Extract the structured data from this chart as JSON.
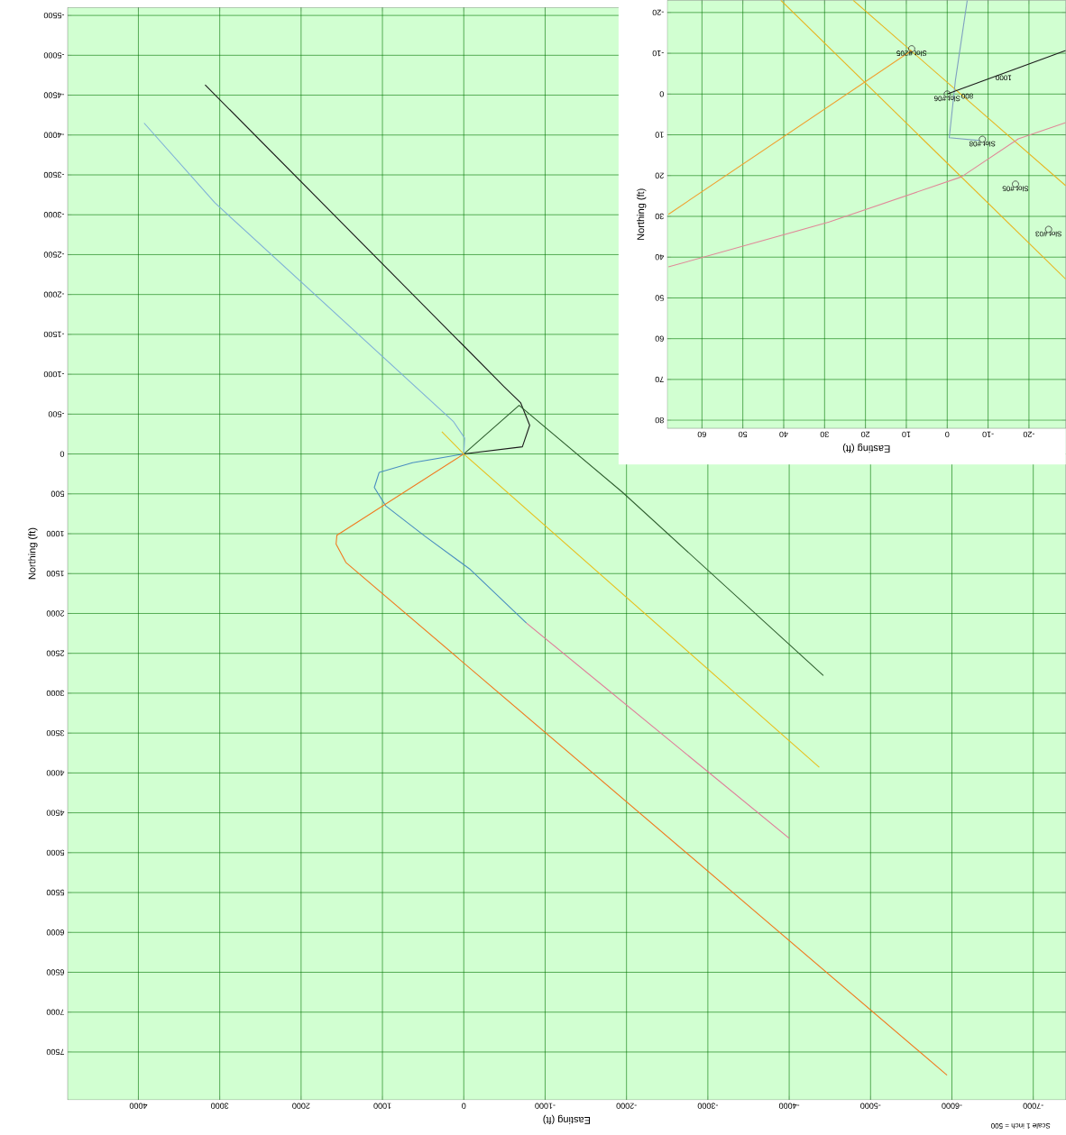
{
  "chart_data": [
    {
      "type": "line",
      "xlabel": "Easting (ft)",
      "ylabel": "Northing (ft)",
      "xlim": [
        4870,
        -7400
      ],
      "ylim": [
        8100,
        -5600
      ],
      "xticks": [
        4000,
        3000,
        2000,
        1000,
        0,
        -1000,
        -2000,
        -3000,
        -4000,
        -5000,
        -6000,
        -7000
      ],
      "yticks": [
        -5500,
        -5000,
        -4500,
        -4000,
        -3500,
        -3000,
        -2500,
        -2000,
        -1500,
        -1000,
        -500,
        0,
        500,
        1000,
        1500,
        2000,
        2500,
        3000,
        3500,
        4000,
        4500,
        5000,
        5500,
        6000,
        6500,
        7000,
        7500
      ],
      "grid": true,
      "series": [
        {
          "color": "#1a1a1a",
          "x": [
            0,
            -720,
            -810,
            -700,
            -500,
            3180
          ],
          "values": [
            0,
            -90,
            -360,
            -640,
            -840,
            -4630
          ]
        },
        {
          "color": "#2f5f2f",
          "x": [
            0,
            -680,
            -1950,
            -4420
          ],
          "values": [
            0,
            -610,
            480,
            2780
          ]
        },
        {
          "color": "#7fb0d8",
          "x": [
            0,
            -10,
            130,
            3060,
            3930
          ],
          "values": [
            0,
            -200,
            -410,
            -3150,
            -4150
          ]
        },
        {
          "color": "#4a8ec0",
          "x": [
            0,
            630,
            1040,
            1100,
            960,
            480,
            -70,
            -770
          ],
          "values": [
            0,
            110,
            230,
            420,
            650,
            1030,
            1440,
            2120
          ]
        },
        {
          "color": "#e07898",
          "x": [
            -770,
            -4000
          ],
          "values": [
            2120,
            4820
          ]
        },
        {
          "color": "#f07a20",
          "x": [
            0,
            1560,
            1570,
            1450,
            -5940
          ],
          "values": [
            0,
            1020,
            1130,
            1360,
            7790
          ]
        },
        {
          "color": "#e8c020",
          "x": [
            270,
            0,
            -4370
          ],
          "values": [
            -280,
            0,
            3930
          ]
        }
      ],
      "annotations": [
        "Scale 1 inch = 500"
      ]
    },
    {
      "type": "line",
      "xlabel": "Easting (ft)",
      "ylabel": "Northing (ft)",
      "xlim": [
        68.5,
        -29
      ],
      "ylim": [
        82,
        -23
      ],
      "xticks": [
        60,
        50,
        40,
        30,
        20,
        10,
        0,
        -10,
        -20
      ],
      "yticks": [
        -20,
        -10,
        0,
        10,
        20,
        30,
        40,
        50,
        60,
        70,
        80
      ],
      "grid": true,
      "series": [
        {
          "color": "#e8b420",
          "x": [
            40.7,
            -29
          ],
          "values": [
            -23,
            45.4
          ]
        },
        {
          "color": "#e8b420",
          "x": [
            23,
            -29
          ],
          "values": [
            -23,
            22.5
          ]
        },
        {
          "color": "#f0a030",
          "x": [
            8.7,
            68.2
          ],
          "values": [
            -10.7,
            29.5
          ]
        },
        {
          "color": "#e08898",
          "x": [
            -29,
            -17.4,
            -3.5,
            28.9,
            68.2
          ],
          "values": [
            7,
            11,
            20.3,
            31.4,
            42.4
          ]
        },
        {
          "color": "#7fa0c0",
          "x": [
            -4.9,
            -2,
            -0.5,
            -7.9
          ],
          "values": [
            -23,
            -3.3,
            10.7,
            11.4
          ]
        },
        {
          "color": "#1a1a1a",
          "x": [
            0,
            -29
          ],
          "values": [
            0,
            -10.7
          ]
        },
        {
          "type": "scatter",
          "marker": "circle",
          "color": "#333333",
          "x": [
            8.7,
            0,
            -8.6,
            -16.7,
            -24.8
          ],
          "values": [
            -11.1,
            0,
            11.1,
            22.1,
            33.2
          ]
        }
      ],
      "annotations": [
        {
          "text": "Slot #205",
          "x": 8.7,
          "y": -11.1
        },
        {
          "text": "Slot #06",
          "x": 0,
          "y": 0
        },
        {
          "text": "Slot #08",
          "x": -8.6,
          "y": 11.1
        },
        {
          "text": "Slot #05",
          "x": -16.7,
          "y": 22.1
        },
        {
          "text": "Slot #03",
          "x": -24.8,
          "y": 33.2
        },
        {
          "text": "1000",
          "x": -13.8,
          "y": -5.1
        },
        {
          "text": "800",
          "x": -4.9,
          "y": -0.6
        }
      ]
    }
  ]
}
